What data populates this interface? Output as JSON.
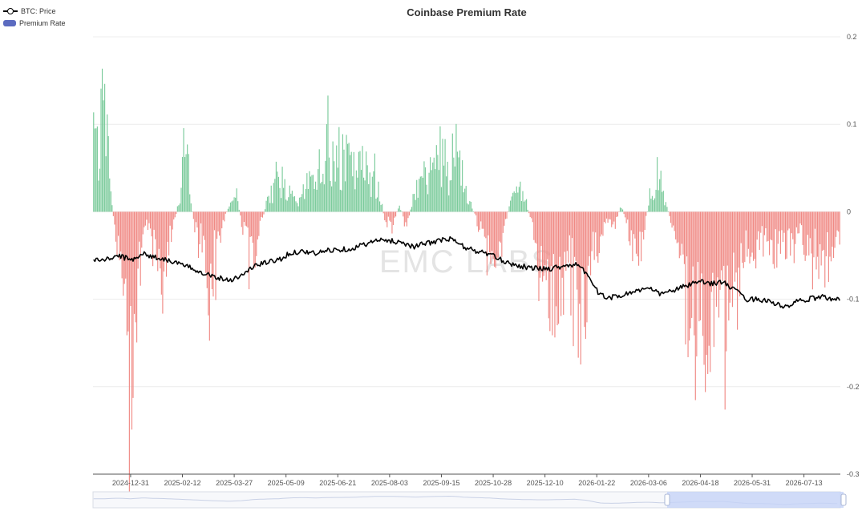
{
  "chart_data": {
    "type": "bar",
    "title": "Coinbase Premium Rate",
    "watermark": "EMC LABS",
    "legend": [
      {
        "name": "BTC: Price",
        "kind": "line",
        "color": "#000000"
      },
      {
        "name": "Premium Rate",
        "kind": "bar",
        "color": "#5b6bc0"
      }
    ],
    "y_right": {
      "min": -0.3,
      "max": 0.2,
      "ticks": [
        "0.2",
        "0.1",
        "0",
        "-0.1",
        "-0.2",
        "-0.3"
      ],
      "tick_values": [
        0.2,
        0.1,
        0,
        -0.1,
        -0.2,
        -0.3
      ]
    },
    "x_ticks": [
      "2024-12-31",
      "2025-02-12",
      "2025-03-27",
      "2025-05-09",
      "2025-06-21",
      "2025-08-03",
      "2025-09-15",
      "2025-10-28",
      "2025-12-10",
      "2026-01-22",
      "2026-03-06",
      "2026-04-18",
      "2026-05-31",
      "2026-07-13"
    ],
    "x_tick_index": [
      30,
      72,
      114,
      156,
      198,
      240,
      282,
      324,
      366,
      408,
      450,
      492,
      534,
      576
    ],
    "n_days": 606,
    "positive_color": "#7bcb9b",
    "negative_color": "#f08a85",
    "series": [
      {
        "name": "Premium Rate",
        "anchors": [
          [
            0,
            0.12
          ],
          [
            3,
            0.08
          ],
          [
            8,
            0.1
          ],
          [
            12,
            0.05
          ],
          [
            16,
            -0.01
          ],
          [
            20,
            -0.05
          ],
          [
            24,
            -0.09
          ],
          [
            28,
            -0.17
          ],
          [
            32,
            -0.22
          ],
          [
            36,
            -0.12
          ],
          [
            40,
            -0.03
          ],
          [
            44,
            -0.02
          ],
          [
            50,
            -0.05
          ],
          [
            56,
            -0.09
          ],
          [
            62,
            -0.03
          ],
          [
            66,
            -0.01
          ],
          [
            70,
            0.02
          ],
          [
            74,
            0.1
          ],
          [
            78,
            0.02
          ],
          [
            82,
            -0.02
          ],
          [
            88,
            -0.04
          ],
          [
            94,
            -0.11
          ],
          [
            98,
            -0.06
          ],
          [
            104,
            -0.02
          ],
          [
            110,
            0.01
          ],
          [
            116,
            0.02
          ],
          [
            122,
            -0.03
          ],
          [
            128,
            -0.07
          ],
          [
            134,
            -0.03
          ],
          [
            140,
            0.01
          ],
          [
            146,
            0.03
          ],
          [
            150,
            0.05
          ],
          [
            156,
            0.03
          ],
          [
            160,
            0.02
          ],
          [
            166,
            0.01
          ],
          [
            172,
            0.03
          ],
          [
            178,
            0.05
          ],
          [
            184,
            0.06
          ],
          [
            190,
            0.08
          ],
          [
            196,
            0.06
          ],
          [
            200,
            0.05
          ],
          [
            206,
            0.07
          ],
          [
            212,
            0.05
          ],
          [
            218,
            0.06
          ],
          [
            224,
            0.05
          ],
          [
            230,
            0.04
          ],
          [
            236,
            -0.01
          ],
          [
            242,
            -0.02
          ],
          [
            248,
            0.01
          ],
          [
            254,
            -0.02
          ],
          [
            260,
            0.03
          ],
          [
            266,
            0.06
          ],
          [
            272,
            0.04
          ],
          [
            278,
            0.06
          ],
          [
            284,
            0.08
          ],
          [
            290,
            0.04
          ],
          [
            294,
            0.12
          ],
          [
            298,
            0.05
          ],
          [
            302,
            0.03
          ],
          [
            306,
            0.01
          ],
          [
            312,
            -0.02
          ],
          [
            320,
            -0.05
          ],
          [
            326,
            -0.07
          ],
          [
            332,
            -0.02
          ],
          [
            338,
            0.01
          ],
          [
            344,
            0.03
          ],
          [
            350,
            0.02
          ],
          [
            354,
            -0.01
          ],
          [
            360,
            -0.05
          ],
          [
            366,
            -0.08
          ],
          [
            372,
            -0.13
          ],
          [
            378,
            -0.12
          ],
          [
            384,
            -0.07
          ],
          [
            390,
            -0.09
          ],
          [
            394,
            -0.16
          ],
          [
            400,
            -0.13
          ],
          [
            404,
            -0.06
          ],
          [
            410,
            -0.04
          ],
          [
            416,
            -0.01
          ],
          [
            422,
            -0.02
          ],
          [
            428,
            0.01
          ],
          [
            434,
            -0.03
          ],
          [
            440,
            -0.07
          ],
          [
            446,
            -0.03
          ],
          [
            452,
            0.03
          ],
          [
            458,
            0.05
          ],
          [
            462,
            0.02
          ],
          [
            468,
            -0.01
          ],
          [
            474,
            -0.04
          ],
          [
            480,
            -0.08
          ],
          [
            486,
            -0.11
          ],
          [
            492,
            -0.15
          ],
          [
            498,
            -0.12
          ],
          [
            504,
            -0.09
          ],
          [
            510,
            -0.13
          ],
          [
            516,
            -0.16
          ],
          [
            522,
            -0.1
          ],
          [
            528,
            -0.05
          ],
          [
            534,
            -0.07
          ],
          [
            540,
            -0.05
          ],
          [
            546,
            -0.04
          ],
          [
            552,
            -0.06
          ],
          [
            558,
            -0.04
          ],
          [
            564,
            -0.05
          ],
          [
            570,
            -0.03
          ],
          [
            576,
            -0.04
          ],
          [
            582,
            -0.05
          ],
          [
            588,
            -0.06
          ],
          [
            594,
            -0.07
          ],
          [
            600,
            -0.05
          ],
          [
            605,
            -0.06
          ]
        ]
      },
      {
        "name": "BTC: Price",
        "anchors": [
          [
            0,
            -0.055
          ],
          [
            10,
            -0.055
          ],
          [
            20,
            -0.05
          ],
          [
            30,
            -0.055
          ],
          [
            40,
            -0.048
          ],
          [
            50,
            -0.052
          ],
          [
            60,
            -0.055
          ],
          [
            70,
            -0.06
          ],
          [
            80,
            -0.065
          ],
          [
            90,
            -0.07
          ],
          [
            100,
            -0.075
          ],
          [
            110,
            -0.078
          ],
          [
            120,
            -0.073
          ],
          [
            130,
            -0.062
          ],
          [
            140,
            -0.058
          ],
          [
            150,
            -0.055
          ],
          [
            160,
            -0.047
          ],
          [
            170,
            -0.045
          ],
          [
            180,
            -0.048
          ],
          [
            190,
            -0.044
          ],
          [
            200,
            -0.043
          ],
          [
            210,
            -0.042
          ],
          [
            220,
            -0.037
          ],
          [
            230,
            -0.033
          ],
          [
            240,
            -0.033
          ],
          [
            250,
            -0.035
          ],
          [
            260,
            -0.04
          ],
          [
            270,
            -0.036
          ],
          [
            280,
            -0.033
          ],
          [
            290,
            -0.031
          ],
          [
            300,
            -0.04
          ],
          [
            310,
            -0.045
          ],
          [
            320,
            -0.048
          ],
          [
            330,
            -0.055
          ],
          [
            340,
            -0.06
          ],
          [
            350,
            -0.063
          ],
          [
            360,
            -0.065
          ],
          [
            370,
            -0.065
          ],
          [
            380,
            -0.062
          ],
          [
            390,
            -0.06
          ],
          [
            400,
            -0.07
          ],
          [
            410,
            -0.095
          ],
          [
            420,
            -0.098
          ],
          [
            430,
            -0.095
          ],
          [
            440,
            -0.09
          ],
          [
            450,
            -0.088
          ],
          [
            460,
            -0.094
          ],
          [
            470,
            -0.09
          ],
          [
            480,
            -0.085
          ],
          [
            490,
            -0.08
          ],
          [
            500,
            -0.082
          ],
          [
            510,
            -0.08
          ],
          [
            520,
            -0.09
          ],
          [
            530,
            -0.1
          ],
          [
            540,
            -0.1
          ],
          [
            550,
            -0.103
          ],
          [
            560,
            -0.11
          ],
          [
            570,
            -0.103
          ],
          [
            580,
            -0.1
          ],
          [
            590,
            -0.097
          ],
          [
            600,
            -0.1
          ],
          [
            605,
            -0.101
          ]
        ]
      }
    ]
  }
}
